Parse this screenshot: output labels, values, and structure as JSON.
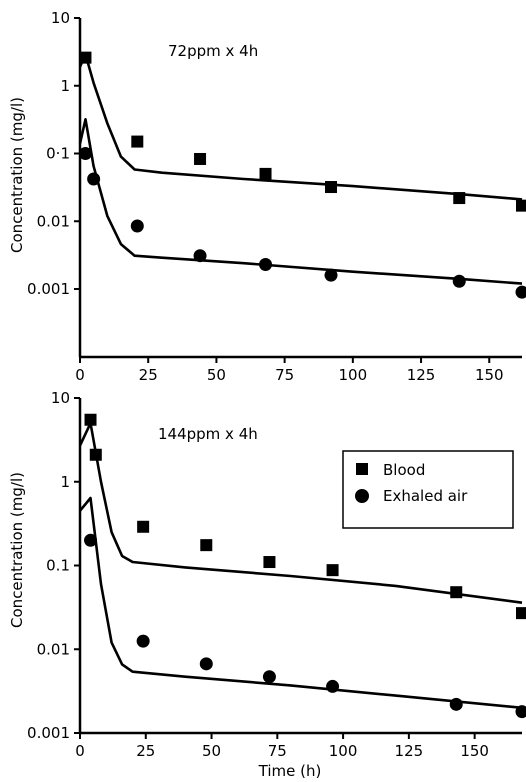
{
  "chart_data": [
    {
      "type": "scatter",
      "annotation": "72ppm x 4h",
      "ylabel": "Concentration (mg/l)",
      "xlabel": "",
      "xlim": [
        0,
        162
      ],
      "xticks": [
        0,
        25,
        50,
        75,
        100,
        125,
        150
      ],
      "yscale": "log",
      "ylim": [
        0.0001,
        10
      ],
      "yticks": [
        0.001,
        0.01,
        0.1,
        1,
        10
      ],
      "ytick_labels": [
        "0.001",
        "0.01",
        "0·1",
        "1",
        "10"
      ],
      "legend": null,
      "series": [
        {
          "name": "Blood",
          "marker": "square",
          "points": [
            [
              2,
              2.6
            ],
            [
              21,
              0.15
            ],
            [
              44,
              0.083
            ],
            [
              68,
              0.05
            ],
            [
              92,
              0.032
            ],
            [
              139,
              0.022
            ],
            [
              162,
              0.017
            ]
          ],
          "fit": [
            [
              0,
              1.9
            ],
            [
              2,
              2.9
            ],
            [
              5,
              1.1
            ],
            [
              10,
              0.28
            ],
            [
              15,
              0.09
            ],
            [
              20,
              0.058
            ],
            [
              30,
              0.052
            ],
            [
              60,
              0.042
            ],
            [
              100,
              0.033
            ],
            [
              140,
              0.025
            ],
            [
              162,
              0.021
            ]
          ]
        },
        {
          "name": "Exhaled air",
          "marker": "circle",
          "points": [
            [
              2,
              0.1
            ],
            [
              5,
              0.042
            ],
            [
              21,
              0.0085
            ],
            [
              44,
              0.0031
            ],
            [
              68,
              0.0023
            ],
            [
              92,
              0.0016
            ],
            [
              139,
              0.0013
            ],
            [
              162,
              0.0009
            ]
          ],
          "fit": [
            [
              0,
              0.14
            ],
            [
              2,
              0.32
            ],
            [
              5,
              0.065
            ],
            [
              10,
              0.012
            ],
            [
              15,
              0.0046
            ],
            [
              20,
              0.0031
            ],
            [
              30,
              0.0029
            ],
            [
              60,
              0.0024
            ],
            [
              100,
              0.0018
            ],
            [
              140,
              0.0014
            ],
            [
              162,
              0.0012
            ]
          ]
        }
      ]
    },
    {
      "type": "scatter",
      "annotation": "144ppm x 4h",
      "ylabel": "Concentration (mg/l)",
      "xlabel": "Time (h)",
      "xlim": [
        0,
        168
      ],
      "xticks": [
        0,
        25,
        50,
        75,
        100,
        125,
        150
      ],
      "yscale": "log",
      "ylim": [
        0.001,
        10
      ],
      "yticks": [
        0.001,
        0.01,
        0.1,
        1,
        10
      ],
      "ytick_labels": [
        "0.001",
        "0.01",
        "0.1",
        "1",
        "10"
      ],
      "legend": {
        "position": "right",
        "entries": [
          {
            "label": "Blood",
            "marker": "square"
          },
          {
            "label": "Exhaled air",
            "marker": "circle"
          }
        ]
      },
      "series": [
        {
          "name": "Blood",
          "marker": "square",
          "points": [
            [
              4,
              5.5
            ],
            [
              6,
              2.1
            ],
            [
              24,
              0.29
            ],
            [
              48,
              0.175
            ],
            [
              72,
              0.11
            ],
            [
              96,
              0.088
            ],
            [
              143,
              0.048
            ],
            [
              168,
              0.027
            ]
          ],
          "fit": [
            [
              0,
              2.7
            ],
            [
              4,
              5.0
            ],
            [
              8,
              1.0
            ],
            [
              12,
              0.25
            ],
            [
              16,
              0.13
            ],
            [
              20,
              0.11
            ],
            [
              40,
              0.095
            ],
            [
              80,
              0.075
            ],
            [
              120,
              0.057
            ],
            [
              168,
              0.036
            ]
          ]
        },
        {
          "name": "Exhaled air",
          "marker": "circle",
          "points": [
            [
              4,
              0.2
            ],
            [
              24,
              0.0125
            ],
            [
              48,
              0.0067
            ],
            [
              72,
              0.0047
            ],
            [
              96,
              0.0036
            ],
            [
              143,
              0.0022
            ],
            [
              168,
              0.0018
            ]
          ],
          "fit": [
            [
              0,
              0.45
            ],
            [
              4,
              0.64
            ],
            [
              8,
              0.06
            ],
            [
              12,
              0.012
            ],
            [
              16,
              0.0066
            ],
            [
              20,
              0.0054
            ],
            [
              40,
              0.0047
            ],
            [
              80,
              0.0037
            ],
            [
              120,
              0.0028
            ],
            [
              168,
              0.002
            ]
          ]
        }
      ]
    }
  ]
}
